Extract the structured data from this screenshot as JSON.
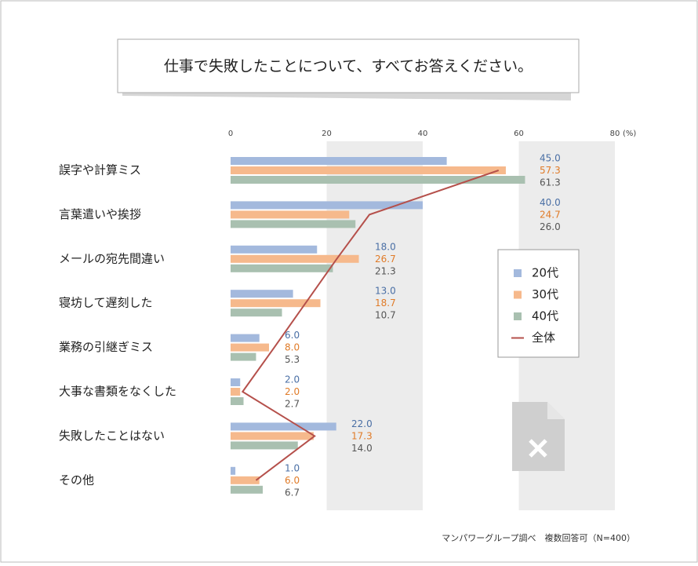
{
  "chart_data": {
    "type": "bar",
    "orientation": "horizontal",
    "title": "仕事で失敗したことについて、すべてお答えください。",
    "categories": [
      "誤字や計算ミス",
      "言葉遣いや挨拶",
      "メールの宛先間違い",
      "寝坊して遅刻した",
      "業務の引継ぎミス",
      "大事な書類をなくした",
      "失敗したことはない",
      "その他"
    ],
    "series": [
      {
        "name": "20代",
        "color": "#a3b9dd",
        "label_color": "#4a6fa5",
        "values": [
          45,
          40,
          18,
          13,
          6,
          2,
          22,
          1
        ],
        "value_labels": [
          "45.0",
          "40.0",
          "18.0",
          "13.0",
          "6.0",
          "2.0",
          "22.0",
          "1.0"
        ]
      },
      {
        "name": "30代",
        "color": "#f6b98c",
        "label_color": "#e07b28",
        "values": [
          57.3,
          24.7,
          26.7,
          18.7,
          8,
          2,
          17.3,
          6
        ],
        "value_labels": [
          "57.3",
          "24.7",
          "26.7",
          "18.7",
          "8.0",
          "2.0",
          "17.3",
          "6.0"
        ]
      },
      {
        "name": "40代",
        "color": "#a9c0b0",
        "label_color": "#555555",
        "values": [
          61.3,
          26,
          21.3,
          10.7,
          5.3,
          2.7,
          14,
          6.7
        ],
        "value_labels": [
          "61.3",
          "26.0",
          "21.3",
          "10.7",
          "5.3",
          "2.7",
          "14.0",
          "6.7"
        ]
      },
      {
        "name": "全体",
        "type": "line",
        "color": "#b5504b",
        "values": [
          55.8,
          28.9,
          22.1,
          15.6,
          9.1,
          2.5,
          17.5,
          5.3
        ]
      }
    ],
    "xlim": [
      0,
      80
    ],
    "xticks": [
      0,
      20,
      40,
      60,
      80
    ],
    "unit": "(%)",
    "shaded_bands": true,
    "legend": "right",
    "source": "マンパワーグループ調べ　複数回答可（N=400）"
  }
}
